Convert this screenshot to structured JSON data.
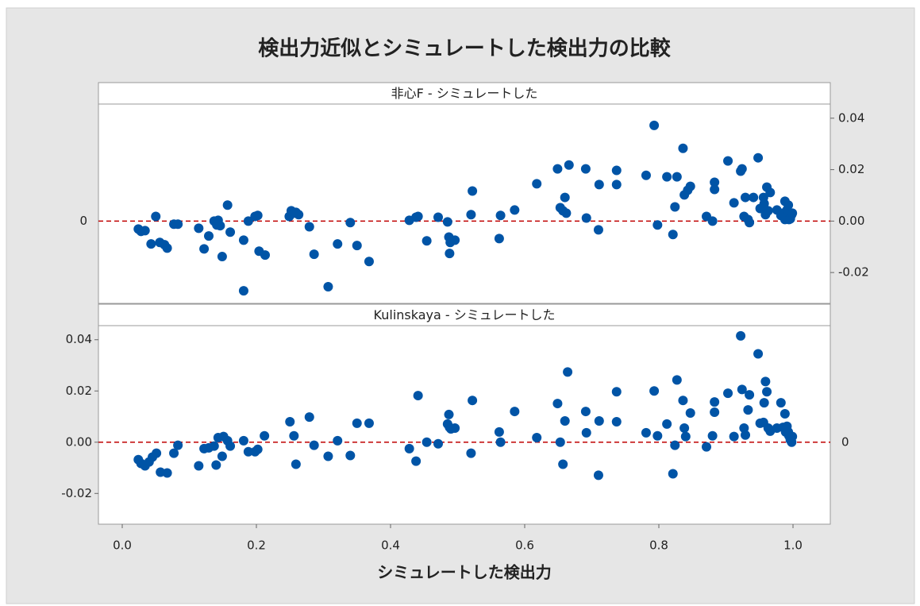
{
  "chart_data": {
    "type": "scatter",
    "title": "検出力近似とシミュレートした検出力の比較",
    "xlabel": "シミュレートした検出力",
    "color": "#0054a6",
    "xlim": [
      -0.0355,
      1.0556
    ],
    "xticks": [
      {
        "value": 0,
        "label": "0.0"
      },
      {
        "value": 0.2,
        "label": "0.2"
      },
      {
        "value": 0.4,
        "label": "0.4"
      },
      {
        "value": 0.6,
        "label": "0.6"
      },
      {
        "value": 0.8,
        "label": "0.8"
      },
      {
        "value": 1,
        "label": "1.0"
      }
    ],
    "ylim": [
      -0.032,
      0.0455
    ],
    "yticks": [
      {
        "value": -0.02,
        "label": "-0.02"
      },
      {
        "value": 0,
        "label": "0.00"
      },
      {
        "value": 0.02,
        "label": "0.02"
      },
      {
        "value": 0.04,
        "label": "0.04"
      }
    ],
    "reference": {
      "value": 0,
      "label": "0",
      "color": "#c00000"
    },
    "panels": [
      {
        "title": "非心F - シミュレートした",
        "yaxis_side": "right",
        "x": [
          0.024,
          0.028,
          0.034,
          0.043,
          0.05,
          0.056,
          0.063,
          0.067,
          0.077,
          0.083,
          0.114,
          0.122,
          0.129,
          0.137,
          0.141,
          0.143,
          0.146,
          0.149,
          0.157,
          0.161,
          0.181,
          0.181,
          0.188,
          0.198,
          0.202,
          0.204,
          0.213,
          0.249,
          0.252,
          0.256,
          0.259,
          0.263,
          0.279,
          0.286,
          0.307,
          0.321,
          0.34,
          0.35,
          0.368,
          0.428,
          0.438,
          0.441,
          0.454,
          0.471,
          0.485,
          0.487,
          0.488,
          0.489,
          0.496,
          0.52,
          0.522,
          0.562,
          0.564,
          0.585,
          0.618,
          0.649,
          0.653,
          0.657,
          0.66,
          0.662,
          0.666,
          0.691,
          0.692,
          0.71,
          0.711,
          0.737,
          0.737,
          0.781,
          0.793,
          0.798,
          0.812,
          0.821,
          0.824,
          0.827,
          0.836,
          0.838,
          0.843,
          0.847,
          0.871,
          0.88,
          0.883,
          0.883,
          0.903,
          0.912,
          0.922,
          0.924,
          0.927,
          0.929,
          0.933,
          0.935,
          0.941,
          0.948,
          0.951,
          0.956,
          0.957,
          0.959,
          0.961,
          0.963,
          0.966,
          0.976,
          0.982,
          0.985,
          0.988,
          0.988,
          0.989,
          0.991,
          0.993,
          0.994,
          0.996,
          0.998,
          0.999
        ],
        "values": [
          -0.0031,
          -0.004,
          -0.0037,
          -0.0089,
          0.0018,
          -0.0083,
          -0.0092,
          -0.0105,
          -0.0012,
          -0.0012,
          -0.0028,
          -0.0108,
          -0.0058,
          0.0,
          -0.0015,
          0.0003,
          -0.0018,
          -0.0138,
          0.0062,
          -0.0043,
          -0.0074,
          -0.0271,
          0.0,
          0.0018,
          0.0022,
          -0.0117,
          -0.0132,
          0.0018,
          0.004,
          0.0031,
          0.0034,
          0.0025,
          -0.0022,
          -0.0129,
          -0.0255,
          -0.0089,
          -0.0006,
          -0.0095,
          -0.0157,
          0.0003,
          0.0015,
          0.0018,
          -0.0077,
          0.0015,
          -0.0003,
          -0.0062,
          -0.0126,
          -0.0083,
          -0.0074,
          0.0025,
          0.0117,
          -0.0068,
          0.0022,
          0.0043,
          0.0145,
          0.0203,
          0.0052,
          0.004,
          0.0092,
          0.0031,
          0.0218,
          0.0203,
          0.0012,
          -0.0034,
          0.0142,
          0.0197,
          0.0142,
          0.0178,
          0.0372,
          -0.0015,
          0.0172,
          -0.0052,
          0.0055,
          0.0172,
          0.0283,
          0.0102,
          0.012,
          0.0135,
          0.0018,
          0.0,
          0.0123,
          0.0151,
          0.0234,
          0.0071,
          0.0194,
          0.0203,
          0.0018,
          0.0092,
          0.0006,
          -0.0006,
          0.0092,
          0.0246,
          0.0049,
          0.0092,
          0.0068,
          0.0025,
          0.0132,
          0.004,
          0.0111,
          0.0043,
          0.0022,
          0.0031,
          0.0006,
          0.0077,
          0.0015,
          0.0043,
          0.0062,
          0.0006,
          0.0009,
          0.0025,
          0.0031
        ]
      },
      {
        "title": "Kulinskaya - シミュレートした",
        "yaxis_side": "left",
        "x": [
          0.024,
          0.028,
          0.034,
          0.04,
          0.045,
          0.051,
          0.057,
          0.067,
          0.077,
          0.083,
          0.114,
          0.122,
          0.129,
          0.137,
          0.14,
          0.143,
          0.149,
          0.151,
          0.157,
          0.161,
          0.181,
          0.188,
          0.198,
          0.202,
          0.212,
          0.25,
          0.256,
          0.259,
          0.279,
          0.286,
          0.307,
          0.321,
          0.34,
          0.35,
          0.368,
          0.428,
          0.438,
          0.441,
          0.454,
          0.471,
          0.485,
          0.487,
          0.488,
          0.49,
          0.496,
          0.52,
          0.522,
          0.562,
          0.564,
          0.585,
          0.618,
          0.649,
          0.653,
          0.657,
          0.66,
          0.664,
          0.691,
          0.692,
          0.71,
          0.711,
          0.737,
          0.737,
          0.781,
          0.793,
          0.798,
          0.812,
          0.821,
          0.824,
          0.827,
          0.836,
          0.838,
          0.84,
          0.847,
          0.871,
          0.88,
          0.883,
          0.883,
          0.903,
          0.912,
          0.922,
          0.924,
          0.927,
          0.929,
          0.933,
          0.935,
          0.948,
          0.951,
          0.956,
          0.957,
          0.959,
          0.961,
          0.963,
          0.966,
          0.976,
          0.982,
          0.985,
          0.988,
          0.989,
          0.991,
          0.993,
          0.994,
          0.996,
          0.998,
          0.999
        ],
        "values": [
          -0.0068,
          -0.0083,
          -0.0092,
          -0.0077,
          -0.0058,
          -0.0043,
          -0.0117,
          -0.012,
          -0.0043,
          -0.0012,
          -0.0092,
          -0.0025,
          -0.0022,
          -0.0015,
          -0.0089,
          0.0018,
          -0.0055,
          0.0022,
          0.0006,
          -0.0015,
          0.0006,
          -0.0037,
          -0.0037,
          -0.0028,
          0.0025,
          0.008,
          0.0025,
          -0.0086,
          0.0098,
          -0.0012,
          -0.0055,
          0.0006,
          -0.0052,
          0.0074,
          0.0074,
          -0.0025,
          -0.0074,
          0.0182,
          0.0,
          -0.0006,
          0.0071,
          0.0108,
          0.0058,
          0.0052,
          0.0055,
          -0.0043,
          0.0163,
          0.004,
          0.0,
          0.012,
          0.0018,
          0.0151,
          0.0,
          -0.0086,
          0.0083,
          0.0274,
          0.012,
          0.0037,
          -0.0129,
          0.0083,
          0.008,
          0.0197,
          0.0037,
          0.02,
          0.0025,
          0.0071,
          -0.0123,
          -0.0012,
          0.0243,
          0.0163,
          0.0055,
          0.0022,
          0.0114,
          -0.0018,
          0.0025,
          0.0117,
          0.0157,
          0.0191,
          0.0022,
          0.0415,
          0.0206,
          0.0055,
          0.0028,
          0.0126,
          0.0185,
          0.0345,
          0.0074,
          0.0077,
          0.0154,
          0.0237,
          0.0197,
          0.0055,
          0.0043,
          0.0055,
          0.0154,
          0.0058,
          0.0111,
          0.004,
          0.0062,
          0.004,
          0.0025,
          0.0009,
          0.0,
          0.0022
        ]
      }
    ]
  }
}
